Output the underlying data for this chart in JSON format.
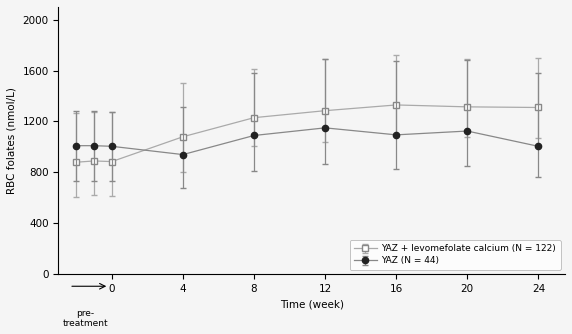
{
  "yaz_levo_x": [
    -2,
    -1,
    0,
    4,
    8,
    12,
    16,
    20,
    24
  ],
  "yaz_levo_y": [
    880,
    890,
    885,
    1080,
    1230,
    1285,
    1330,
    1315,
    1310
  ],
  "yaz_levo_err_up": [
    390,
    385,
    390,
    420,
    385,
    405,
    390,
    375,
    390
  ],
  "yaz_levo_err_dn": [
    270,
    265,
    270,
    275,
    220,
    245,
    235,
    235,
    240
  ],
  "yaz_x": [
    -2,
    -1,
    0,
    4,
    8,
    12,
    16,
    20,
    24
  ],
  "yaz_y": [
    1010,
    1010,
    1005,
    940,
    1090,
    1150,
    1095,
    1125,
    1005
  ],
  "yaz_err_up": [
    275,
    275,
    270,
    370,
    490,
    540,
    580,
    555,
    575
  ],
  "yaz_err_dn": [
    275,
    275,
    270,
    265,
    280,
    285,
    265,
    275,
    245
  ],
  "xlim": [
    -3.0,
    25.5
  ],
  "ylim": [
    0,
    2100
  ],
  "yticks": [
    0,
    400,
    800,
    1200,
    1600,
    2000
  ],
  "xticks_main": [
    0,
    4,
    8,
    12,
    16,
    20,
    24
  ],
  "xlabel": "Time (week)",
  "ylabel": "RBC folates (nmol/L)",
  "legend_levo": "YAZ + levomefolate calcium (N = 122)",
  "legend_yaz": "YAZ (N = 44)",
  "line_color_levo": "#aaaaaa",
  "line_color_yaz": "#888888",
  "marker_edge_levo": "#888888",
  "marker_face_levo": "white",
  "marker_face_yaz": "#222222",
  "marker_edge_yaz": "#222222",
  "ecolor_levo": "#aaaaaa",
  "ecolor_yaz": "#888888",
  "bg_color": "#f5f5f5",
  "pretreatment_label": "pre-\ntreatment"
}
